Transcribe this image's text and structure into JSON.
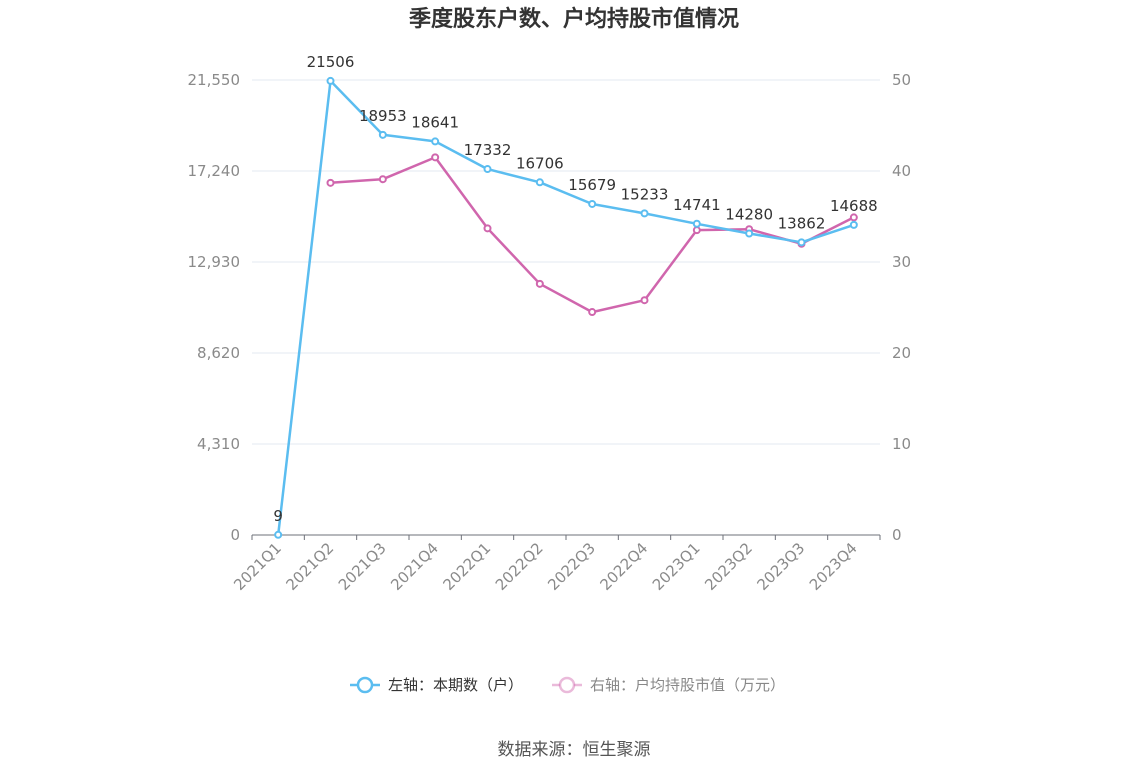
{
  "chart_data": {
    "type": "line",
    "title": "季度股东户数、户均持股市值情况",
    "categories": [
      "2021Q1",
      "2021Q2",
      "2021Q3",
      "2021Q4",
      "2022Q1",
      "2022Q2",
      "2022Q3",
      "2022Q4",
      "2023Q1",
      "2023Q2",
      "2023Q3",
      "2023Q4"
    ],
    "left_axis": {
      "ticks": [
        "0",
        "4,310",
        "8,620",
        "12,930",
        "17,240",
        "21,550"
      ],
      "ylim": [
        0,
        21550
      ]
    },
    "right_axis": {
      "ticks": [
        "0",
        "10",
        "20",
        "30",
        "40",
        "50"
      ],
      "ylim": [
        0,
        50
      ]
    },
    "series": [
      {
        "name": "左轴：本期数（户）",
        "axis": "left",
        "color": "#5bbdf0",
        "values": [
          9,
          21506,
          18953,
          18641,
          17332,
          16706,
          15679,
          15233,
          14741,
          14280,
          13862,
          14688
        ],
        "labels": [
          "9",
          "21506",
          "18953",
          "18641",
          "17332",
          "16706",
          "15679",
          "15233",
          "14741",
          "14280",
          "13862",
          "14688"
        ]
      },
      {
        "name": "右轴：户均持股市值（万元）",
        "axis": "right",
        "color": "#d066ad",
        "values": [
          null,
          38.7,
          39.1,
          41.5,
          33.7,
          27.6,
          24.5,
          25.8,
          33.5,
          33.6,
          32.0,
          34.9
        ]
      }
    ],
    "grid": true,
    "legend": "bottom-center"
  },
  "source": "数据来源：恒生聚源"
}
